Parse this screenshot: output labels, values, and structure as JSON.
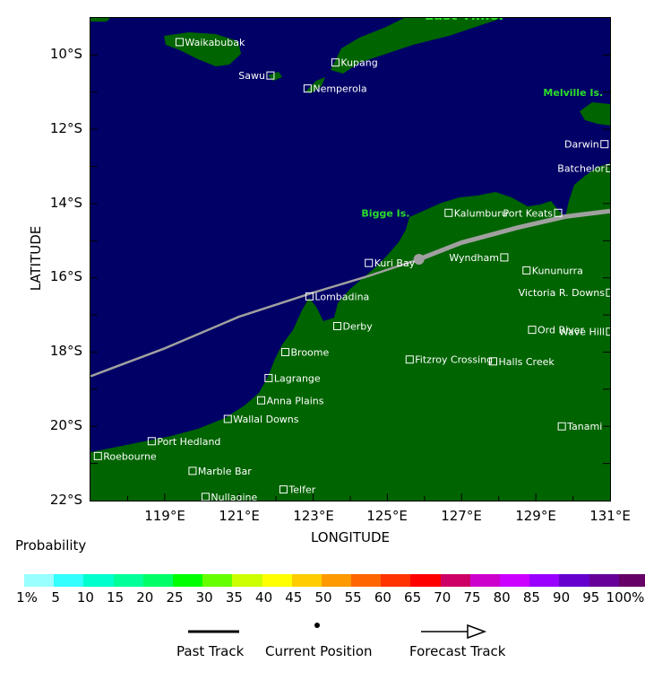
{
  "axes": {
    "latitude_labels": [
      "10°S",
      "12°S",
      "14°S",
      "16°S",
      "18°S",
      "20°S",
      "22°S"
    ],
    "longitude_labels": [
      "119°E",
      "121°E",
      "123°E",
      "125°E",
      "127°E",
      "129°E",
      "131°E"
    ],
    "xlabel": "LONGITUDE",
    "ylabel": "LATITUDE",
    "lat_range": [
      -22,
      -9
    ],
    "lon_range": [
      117,
      131
    ]
  },
  "colors": {
    "ocean": "#000066",
    "land": "#006400",
    "region_label": "#2bdc2b",
    "track": "#a0a0a0",
    "place_text": "#ffffff"
  },
  "regions": [
    {
      "name": "East Timor",
      "lon": 126.0,
      "lat": -9.05,
      "size": "large"
    },
    {
      "name": "Melville Is.",
      "lon": 129.2,
      "lat": -11.1,
      "size": "small"
    },
    {
      "name": "Bigge Is.",
      "lon": 124.3,
      "lat": -14.35,
      "size": "small"
    }
  ],
  "places": [
    {
      "name": "Waikabubak",
      "lon": 119.4,
      "lat": -9.65,
      "side": "right"
    },
    {
      "name": "Kupang",
      "lon": 123.6,
      "lat": -10.2,
      "side": "right"
    },
    {
      "name": "Sawu",
      "lon": 121.85,
      "lat": -10.55,
      "side": "left"
    },
    {
      "name": "Nemperola",
      "lon": 122.85,
      "lat": -10.9,
      "side": "right"
    },
    {
      "name": "Darwin",
      "lon": 130.85,
      "lat": -12.4,
      "side": "left"
    },
    {
      "name": "Batchelor",
      "lon": 131.0,
      "lat": -13.05,
      "side": "left"
    },
    {
      "name": "Kalumburu",
      "lon": 126.65,
      "lat": -14.25,
      "side": "right"
    },
    {
      "name": "Port Keats",
      "lon": 129.6,
      "lat": -14.25,
      "side": "left"
    },
    {
      "name": "Wyndham",
      "lon": 128.15,
      "lat": -15.45,
      "side": "left"
    },
    {
      "name": "Kuri Bay",
      "lon": 124.5,
      "lat": -15.6,
      "side": "right"
    },
    {
      "name": "Kununurra",
      "lon": 128.75,
      "lat": -15.8,
      "side": "right"
    },
    {
      "name": "Lombadina",
      "lon": 122.9,
      "lat": -16.5,
      "side": "right"
    },
    {
      "name": "Victoria R. Downs",
      "lon": 131.0,
      "lat": -16.4,
      "side": "left"
    },
    {
      "name": "Derby",
      "lon": 123.65,
      "lat": -17.3,
      "side": "right"
    },
    {
      "name": "Wave Hill",
      "lon": 131.0,
      "lat": -17.45,
      "side": "left"
    },
    {
      "name": "Ord River",
      "lon": 128.9,
      "lat": -17.4,
      "side": "right"
    },
    {
      "name": "Broome",
      "lon": 122.25,
      "lat": -18.0,
      "side": "right"
    },
    {
      "name": "Fitzroy Crossing",
      "lon": 125.6,
      "lat": -18.2,
      "side": "right"
    },
    {
      "name": "Halls Creek",
      "lon": 127.85,
      "lat": -18.25,
      "side": "right"
    },
    {
      "name": "Lagrange",
      "lon": 121.8,
      "lat": -18.7,
      "side": "right"
    },
    {
      "name": "Anna Plains",
      "lon": 121.6,
      "lat": -19.3,
      "side": "right"
    },
    {
      "name": "Wallal Downs",
      "lon": 120.7,
      "lat": -19.8,
      "side": "right"
    },
    {
      "name": "Tanami",
      "lon": 129.7,
      "lat": -20.0,
      "side": "right"
    },
    {
      "name": "Port Hedland",
      "lon": 118.65,
      "lat": -20.4,
      "side": "right"
    },
    {
      "name": "Roebourne",
      "lon": 117.2,
      "lat": -20.8,
      "side": "right"
    },
    {
      "name": "Marble Bar",
      "lon": 119.75,
      "lat": -21.2,
      "side": "right"
    },
    {
      "name": "Telfer",
      "lon": 122.2,
      "lat": -21.7,
      "side": "right"
    },
    {
      "name": "Nullagine",
      "lon": 120.1,
      "lat": -21.9,
      "side": "right"
    }
  ],
  "track": {
    "past": [
      [
        117.0,
        -18.65
      ],
      [
        119.0,
        -17.9
      ],
      [
        121.0,
        -17.05
      ],
      [
        123.0,
        -16.4
      ],
      [
        124.5,
        -15.95
      ],
      [
        125.85,
        -15.5
      ]
    ],
    "forecast": [
      [
        125.85,
        -15.5
      ],
      [
        127.0,
        -15.05
      ],
      [
        128.5,
        -14.65
      ],
      [
        129.8,
        -14.35
      ],
      [
        131.0,
        -14.2
      ]
    ],
    "current": [
      125.85,
      -15.5
    ]
  },
  "legend": {
    "probability_title": "Probability",
    "colorbar_colors": [
      "#99ffff",
      "#33ffff",
      "#00ffcc",
      "#00ff99",
      "#00ff66",
      "#00ff00",
      "#66ff00",
      "#ccff00",
      "#ffff00",
      "#ffcc00",
      "#ff9900",
      "#ff6600",
      "#ff3300",
      "#ff0000",
      "#cc0066",
      "#cc00cc",
      "#cc00ff",
      "#9900ff",
      "#6600cc",
      "#660099",
      "#660066"
    ],
    "colorbar_labels": [
      "1%",
      "5",
      "10",
      "15",
      "20",
      "25",
      "30",
      "35",
      "40",
      "45",
      "50",
      "55",
      "60",
      "65",
      "70",
      "75",
      "80",
      "85",
      "90",
      "95",
      "100%"
    ],
    "past_track": "Past Track",
    "current_position": "Current Position",
    "forecast_track": "Forecast Track"
  }
}
